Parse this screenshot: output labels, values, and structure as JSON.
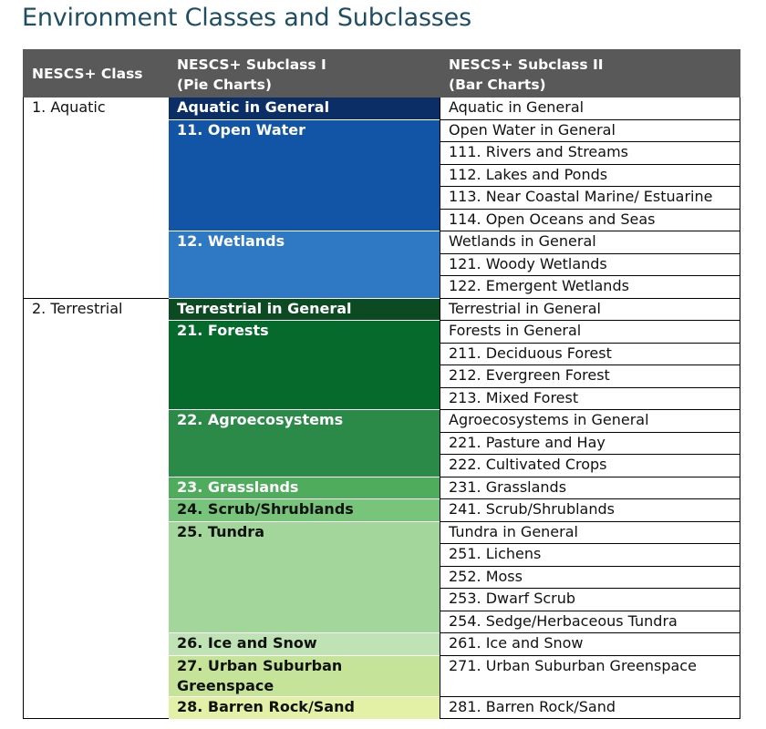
{
  "title": "Environment Classes and Subclasses",
  "headers": {
    "col1": "NESCS+ Class",
    "col2_line1": "NESCS+ Subclass I",
    "col2_line2": "(Pie Charts)",
    "col3_line1": "NESCS+ Subclass II",
    "col3_line2": "(Bar Charts)"
  },
  "classes": [
    {
      "name": "1. Aquatic",
      "color": "#ffffff"
    },
    {
      "name": "2. Terrestrial",
      "color": "#ffffff"
    }
  ],
  "subclass1": [
    {
      "label": "Aquatic in General",
      "color": "#0b2e66",
      "text_color": "#ffffff"
    },
    {
      "label": "11. Open Water",
      "color": "#1255a6",
      "text_color": "#ffffff"
    },
    {
      "label": "12. Wetlands",
      "color": "#2f78c4",
      "text_color": "#ffffff"
    },
    {
      "label": "Terrestrial in General",
      "color": "#0c4a22",
      "text_color": "#ffffff"
    },
    {
      "label": "21. Forests",
      "color": "#066a2d",
      "text_color": "#ffffff"
    },
    {
      "label": "22. Agroecosystems",
      "color": "#2b8a48",
      "text_color": "#ffffff"
    },
    {
      "label": "23. Grasslands",
      "color": "#4fac5c",
      "text_color": "#ffffff"
    },
    {
      "label": "24. Scrub/Shrublands",
      "color": "#78c47a",
      "text_color": "#111111"
    },
    {
      "label": "25. Tundra",
      "color": "#a3d69b",
      "text_color": "#111111"
    },
    {
      "label": "26. Ice and Snow",
      "color": "#bfe3b5",
      "text_color": "#111111"
    },
    {
      "label": "27. Urban Suburban Greenspace",
      "color": "#c5e49a",
      "text_color": "#111111"
    },
    {
      "label": "28. Barren Rock/Sand",
      "color": "#e2f1a6",
      "text_color": "#111111"
    }
  ],
  "subclass2": [
    "Aquatic in General",
    "Open Water in General",
    "111. Rivers and Streams",
    "112. Lakes and Ponds",
    "113. Near Coastal Marine/ Estuarine",
    "114. Open Oceans and Seas",
    "Wetlands in General",
    "121. Woody Wetlands",
    "122. Emergent Wetlands",
    "Terrestrial in General",
    "Forests in General",
    "211. Deciduous Forest",
    "212. Evergreen Forest",
    "213. Mixed Forest",
    "Agroecosystems in General",
    "221. Pasture and Hay",
    "222. Cultivated Crops",
    "231. Grasslands",
    "241. Scrub/Shrublands",
    "Tundra in General",
    "251. Lichens",
    "252. Moss",
    "253. Dwarf Scrub",
    "254. Sedge/Herbaceous Tundra",
    "261. Ice and Snow",
    "271. Urban Suburban Greenspace",
    "281. Barren Rock/Sand"
  ]
}
